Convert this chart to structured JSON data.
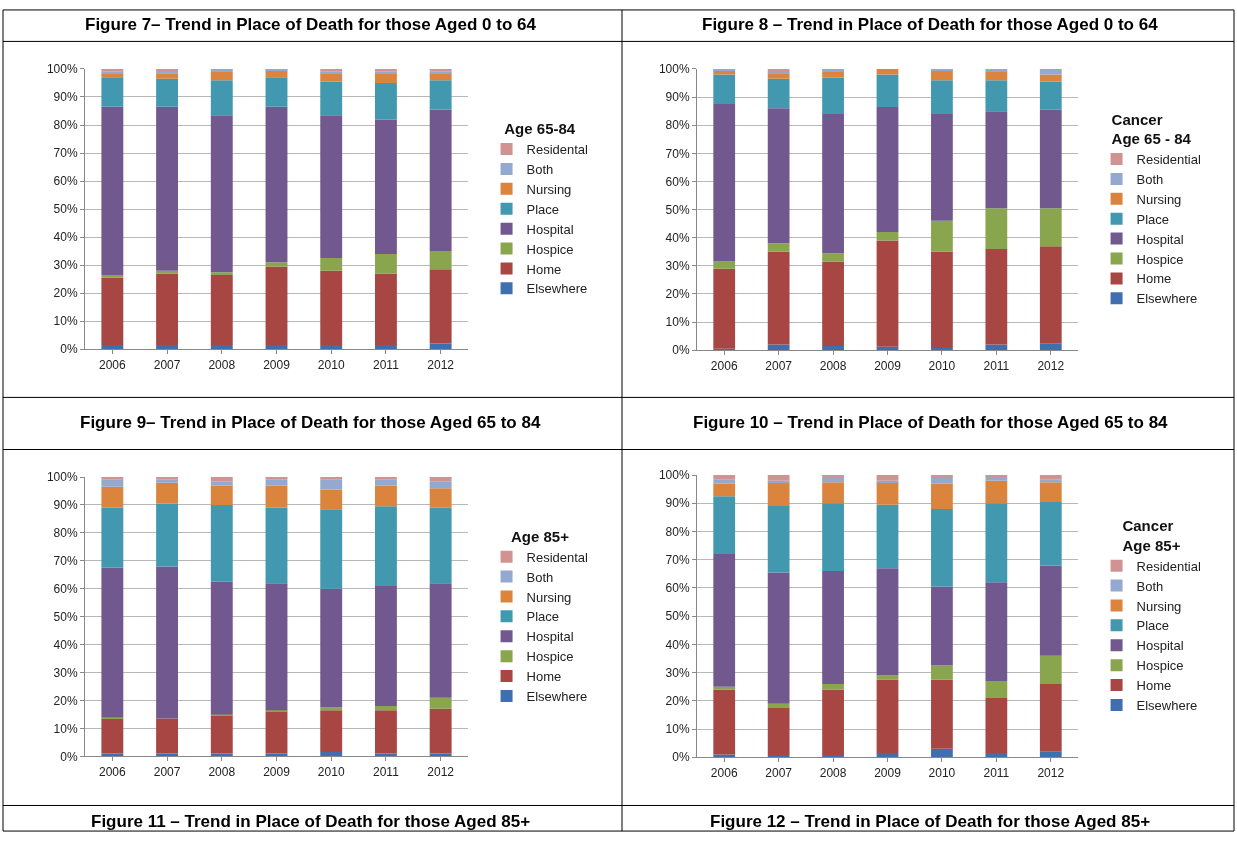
{
  "chart_data": [
    {
      "type": "bar",
      "stacked": true,
      "title": "Figure 7– Trend in Place of Death for those Aged 0 to 64",
      "legend_title": "Age 65-84",
      "legend": "right",
      "grid": "y",
      "categories": [
        "2006",
        "2007",
        "2008",
        "2009",
        "2010",
        "2011",
        "2012"
      ],
      "ylim": [
        0,
        100
      ],
      "yticks": [
        {
          "value": 0,
          "label": "0%"
        },
        {
          "value": 10,
          "label": "10%"
        },
        {
          "value": 20,
          "label": "20%"
        },
        {
          "value": 30,
          "label": "30%"
        },
        {
          "value": 40,
          "label": "40%"
        },
        {
          "value": 50,
          "label": "50%"
        },
        {
          "value": 60,
          "label": "60%"
        },
        {
          "value": 70,
          "label": "70%"
        },
        {
          "value": 80,
          "label": "80%"
        },
        {
          "value": 90,
          "label": "90%"
        },
        {
          "value": 100,
          "label": "100%"
        }
      ],
      "series": [
        {
          "name": "Elsewhere",
          "color": "#3f6fae",
          "values": [
            1.5,
            1.5,
            1.5,
            1.5,
            1.5,
            1.5,
            2
          ]
        },
        {
          "name": "Home",
          "color": "#a84644",
          "values": [
            24,
            25.5,
            25,
            28,
            26.5,
            25.5,
            26.5
          ]
        },
        {
          "name": "Hospice",
          "color": "#89a54e",
          "values": [
            1,
            1,
            1,
            1.5,
            4.5,
            7,
            6.5
          ]
        },
        {
          "name": "Hospital",
          "color": "#71588f",
          "values": [
            60,
            58.5,
            56,
            55.5,
            51,
            48,
            50.5
          ]
        },
        {
          "name": "Place",
          "color": "#4198af",
          "values": [
            10.5,
            10,
            12.5,
            10.5,
            12,
            13,
            10.5
          ]
        },
        {
          "name": "Nursing",
          "color": "#db843d",
          "values": [
            1.5,
            2,
            3,
            2.5,
            3,
            3.5,
            2.5
          ]
        },
        {
          "name": "Both",
          "color": "#93a9cf",
          "values": [
            0.5,
            1,
            0.7,
            0.3,
            0.5,
            0.5,
            0.5
          ]
        },
        {
          "name": "Residental",
          "color": "#d19392",
          "values": [
            1,
            0.5,
            0.3,
            0.2,
            1,
            1,
            1
          ]
        }
      ]
    },
    {
      "type": "bar",
      "stacked": true,
      "title": "Figure 8 – Trend in Place of Death for those Aged 0 to 64",
      "legend_title": "Cancer\nAge 65 - 84",
      "legend": "right",
      "grid": "y",
      "categories": [
        "2006",
        "2007",
        "2008",
        "2009",
        "2010",
        "2011",
        "2012"
      ],
      "ylim": [
        0,
        100
      ],
      "yticks": [
        {
          "value": 0,
          "label": "0%"
        },
        {
          "value": 10,
          "label": "10%"
        },
        {
          "value": 20,
          "label": "20%"
        },
        {
          "value": 30,
          "label": "30%"
        },
        {
          "value": 40,
          "label": "40%"
        },
        {
          "value": 50,
          "label": "50%"
        },
        {
          "value": 60,
          "label": "60%"
        },
        {
          "value": 70,
          "label": "70%"
        },
        {
          "value": 80,
          "label": "80%"
        },
        {
          "value": 90,
          "label": "90%"
        },
        {
          "value": 100,
          "label": "100%"
        }
      ],
      "series": [
        {
          "name": "Elsewhere",
          "color": "#3f6fae",
          "values": [
            0.5,
            2,
            1.5,
            1.2,
            0.8,
            2,
            2.5
          ]
        },
        {
          "name": "Home",
          "color": "#a84644",
          "values": [
            28.5,
            33,
            30,
            37.8,
            34.2,
            34,
            34.5
          ]
        },
        {
          "name": "Hospice",
          "color": "#89a54e",
          "values": [
            2.5,
            3,
            3,
            3,
            11,
            14.5,
            13.5
          ]
        },
        {
          "name": "Hospital",
          "color": "#71588f",
          "values": [
            56,
            48,
            49.5,
            44.5,
            38,
            34.5,
            35
          ]
        },
        {
          "name": "Place",
          "color": "#4198af",
          "values": [
            10.5,
            10.5,
            13,
            11.5,
            12,
            11,
            10
          ]
        },
        {
          "name": "Nursing",
          "color": "#db843d",
          "values": [
            1.5,
            2,
            2,
            2,
            3.5,
            3,
            2.5
          ]
        },
        {
          "name": "Both",
          "color": "#93a9cf",
          "values": [
            0.2,
            0.3,
            0.7,
            0,
            0.3,
            0.7,
            1.8
          ]
        },
        {
          "name": "Residential",
          "color": "#d19392",
          "values": [
            0.3,
            1.2,
            0.3,
            0,
            0.2,
            0.3,
            0.2
          ]
        }
      ]
    },
    {
      "type": "bar",
      "stacked": true,
      "title": "Figure 9– Trend in Place of Death for those Aged 65 to 84",
      "annotations": [
        "Figure 11 – Trend in Place of Death for those Aged 85+"
      ],
      "legend_title": "Age 85+",
      "legend": "right",
      "grid": "y",
      "categories": [
        "2006",
        "2007",
        "2008",
        "2009",
        "2010",
        "2011",
        "2012"
      ],
      "ylim": [
        0,
        100
      ],
      "yticks": [
        {
          "value": 0,
          "label": "0%"
        },
        {
          "value": 10,
          "label": "10%"
        },
        {
          "value": 20,
          "label": "20%"
        },
        {
          "value": 30,
          "label": "30%"
        },
        {
          "value": 40,
          "label": "40%"
        },
        {
          "value": 50,
          "label": "50%"
        },
        {
          "value": 60,
          "label": "60%"
        },
        {
          "value": 70,
          "label": "70%"
        },
        {
          "value": 80,
          "label": "80%"
        },
        {
          "value": 90,
          "label": "90%"
        },
        {
          "value": 100,
          "label": "100%"
        }
      ],
      "series": [
        {
          "name": "Elsewhere",
          "color": "#3f6fae",
          "values": [
            1,
            1,
            1,
            1,
            1.5,
            1,
            1
          ]
        },
        {
          "name": "Home",
          "color": "#a84644",
          "values": [
            12.5,
            12.5,
            13.5,
            15,
            15,
            15.5,
            16
          ]
        },
        {
          "name": "Hospice",
          "color": "#89a54e",
          "values": [
            0.5,
            0,
            0.5,
            0.5,
            1,
            1.5,
            4
          ]
        },
        {
          "name": "Hospital",
          "color": "#71588f",
          "values": [
            53.5,
            54.5,
            47.5,
            45.5,
            42.5,
            43,
            41
          ]
        },
        {
          "name": "Place",
          "color": "#4198af",
          "values": [
            21.5,
            22.5,
            27.5,
            27,
            28.5,
            28.5,
            27
          ]
        },
        {
          "name": "Nursing",
          "color": "#db843d",
          "values": [
            7.5,
            7.5,
            7,
            8,
            7,
            7.5,
            7
          ]
        },
        {
          "name": "Both",
          "color": "#93a9cf",
          "values": [
            2.5,
            1,
            1.5,
            2,
            3.5,
            2,
            2.5
          ]
        },
        {
          "name": "Residental",
          "color": "#d19392",
          "values": [
            1,
            1,
            1.5,
            1,
            1,
            1,
            1.5
          ]
        }
      ]
    },
    {
      "type": "bar",
      "stacked": true,
      "title": "Figure 10 – Trend in Place of Death for those Aged 65 to 84",
      "annotations": [
        "Figure 12 – Trend in Place of Death for those Aged 85+"
      ],
      "legend_title": "Cancer\nAge 85+",
      "legend": "right",
      "grid": "y",
      "categories": [
        "2006",
        "2007",
        "2008",
        "2009",
        "2010",
        "2011",
        "2012"
      ],
      "ylim": [
        0,
        100
      ],
      "yticks": [
        {
          "value": 0,
          "label": "0%"
        },
        {
          "value": 10,
          "label": "10%"
        },
        {
          "value": 20,
          "label": "20%"
        },
        {
          "value": 30,
          "label": "30%"
        },
        {
          "value": 40,
          "label": "40%"
        },
        {
          "value": 50,
          "label": "50%"
        },
        {
          "value": 60,
          "label": "60%"
        },
        {
          "value": 70,
          "label": "70%"
        },
        {
          "value": 80,
          "label": "80%"
        },
        {
          "value": 90,
          "label": "90%"
        },
        {
          "value": 100,
          "label": "100%"
        }
      ],
      "series": [
        {
          "name": "Elsewhere",
          "color": "#3f6fae",
          "values": [
            1,
            0.8,
            0.8,
            1.5,
            3,
            1.5,
            2
          ]
        },
        {
          "name": "Home",
          "color": "#a84644",
          "values": [
            23,
            16.7,
            23.2,
            26,
            24.5,
            19.5,
            24
          ]
        },
        {
          "name": "Hospice",
          "color": "#89a54e",
          "values": [
            1,
            1.5,
            2,
            1.5,
            5,
            6,
            10
          ]
        },
        {
          "name": "Hospital",
          "color": "#71588f",
          "values": [
            47,
            46.5,
            40,
            38,
            28,
            35,
            32
          ]
        },
        {
          "name": "Place",
          "color": "#4198af",
          "values": [
            20.5,
            23.5,
            24,
            22.5,
            27.5,
            28,
            22.5
          ]
        },
        {
          "name": "Nursing",
          "color": "#db843d",
          "values": [
            4.5,
            8.5,
            7.5,
            8,
            9,
            8,
            7
          ]
        },
        {
          "name": "Both",
          "color": "#93a9cf",
          "values": [
            1.5,
            0.5,
            1.5,
            0.5,
            2,
            1,
            1
          ]
        },
        {
          "name": "Residential",
          "color": "#d19392",
          "values": [
            1.5,
            2,
            1,
            2,
            1,
            1,
            1.5
          ]
        }
      ]
    }
  ]
}
